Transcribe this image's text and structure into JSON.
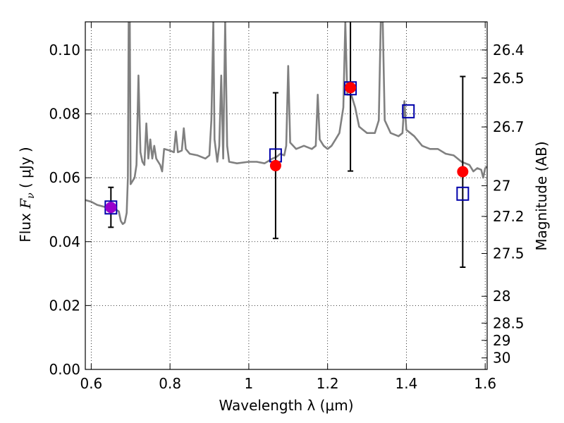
{
  "chart_data": {
    "type": "scatter",
    "xlabel": "Wavelength  λ (μm)",
    "ylabel": "Flux  F_ν  ( μJy )",
    "ylabel_parts": {
      "prefix": "Flux  ",
      "symbol": "F",
      "subscript": "ν",
      "suffix": "  ( μJy )"
    },
    "y2label": "Magnitude (AB)",
    "xlim": [
      0.585,
      1.605
    ],
    "ylim": [
      0.0,
      0.1088
    ],
    "grid": true,
    "x_ticks": [
      0.6,
      0.8,
      1.0,
      1.2,
      1.4,
      1.6
    ],
    "x_tick_labels": [
      "0.6",
      "0.8",
      "1",
      "1.2",
      "1.4",
      "1.6"
    ],
    "y_ticks": [
      0.0,
      0.02,
      0.04,
      0.06,
      0.08,
      0.1
    ],
    "y_tick_labels": [
      "0.00",
      "0.02",
      "0.04",
      "0.06",
      "0.08",
      "0.10"
    ],
    "y2_ticks": [
      {
        "label": "26.4",
        "flux": 0.1
      },
      {
        "label": "26.5",
        "flux": 0.0912
      },
      {
        "label": "26.7",
        "flux": 0.0759
      },
      {
        "label": "27",
        "flux": 0.0575
      },
      {
        "label": "27.2",
        "flux": 0.0479
      },
      {
        "label": "27.5",
        "flux": 0.0363
      },
      {
        "label": "28",
        "flux": 0.0229
      },
      {
        "label": "28.5",
        "flux": 0.0145
      },
      {
        "label": "29",
        "flux": 0.0091
      },
      {
        "label": "30",
        "flux": 0.0036
      }
    ],
    "series": [
      {
        "kind": "line",
        "color": "#808080",
        "points": [
          [
            0.585,
            0.053
          ],
          [
            0.6,
            0.0525
          ],
          [
            0.615,
            0.0515
          ],
          [
            0.63,
            0.051
          ],
          [
            0.645,
            0.0505
          ],
          [
            0.66,
            0.0502
          ],
          [
            0.67,
            0.0495
          ],
          [
            0.675,
            0.0465
          ],
          [
            0.68,
            0.0455
          ],
          [
            0.685,
            0.046
          ],
          [
            0.69,
            0.049
          ],
          [
            0.693,
            0.06
          ],
          [
            0.695,
            0.1088
          ],
          [
            0.698,
            0.1088
          ],
          [
            0.7,
            0.058
          ],
          [
            0.705,
            0.059
          ],
          [
            0.71,
            0.06
          ],
          [
            0.715,
            0.064
          ],
          [
            0.72,
            0.092
          ],
          [
            0.725,
            0.068
          ],
          [
            0.73,
            0.065
          ],
          [
            0.735,
            0.064
          ],
          [
            0.74,
            0.077
          ],
          [
            0.745,
            0.066
          ],
          [
            0.75,
            0.072
          ],
          [
            0.755,
            0.066
          ],
          [
            0.76,
            0.07
          ],
          [
            0.765,
            0.066
          ],
          [
            0.77,
            0.065
          ],
          [
            0.775,
            0.064
          ],
          [
            0.78,
            0.062
          ],
          [
            0.785,
            0.069
          ],
          [
            0.8,
            0.0685
          ],
          [
            0.81,
            0.068
          ],
          [
            0.815,
            0.0745
          ],
          [
            0.82,
            0.068
          ],
          [
            0.83,
            0.0685
          ],
          [
            0.835,
            0.0755
          ],
          [
            0.84,
            0.069
          ],
          [
            0.85,
            0.0675
          ],
          [
            0.87,
            0.067
          ],
          [
            0.89,
            0.066
          ],
          [
            0.9,
            0.067
          ],
          [
            0.905,
            0.078
          ],
          [
            0.91,
            0.1088
          ],
          [
            0.913,
            0.072
          ],
          [
            0.92,
            0.065
          ],
          [
            0.925,
            0.07
          ],
          [
            0.93,
            0.092
          ],
          [
            0.935,
            0.066
          ],
          [
            0.94,
            0.1088
          ],
          [
            0.945,
            0.07
          ],
          [
            0.95,
            0.065
          ],
          [
            0.97,
            0.0645
          ],
          [
            1.0,
            0.065
          ],
          [
            1.02,
            0.065
          ],
          [
            1.04,
            0.0645
          ],
          [
            1.06,
            0.066
          ],
          [
            1.07,
            0.0665
          ],
          [
            1.08,
            0.0675
          ],
          [
            1.09,
            0.067
          ],
          [
            1.095,
            0.07
          ],
          [
            1.1,
            0.095
          ],
          [
            1.105,
            0.071
          ],
          [
            1.12,
            0.069
          ],
          [
            1.14,
            0.07
          ],
          [
            1.16,
            0.069
          ],
          [
            1.17,
            0.07
          ],
          [
            1.175,
            0.086
          ],
          [
            1.18,
            0.072
          ],
          [
            1.19,
            0.07
          ],
          [
            1.2,
            0.069
          ],
          [
            1.21,
            0.07
          ],
          [
            1.22,
            0.072
          ],
          [
            1.23,
            0.074
          ],
          [
            1.24,
            0.082
          ],
          [
            1.245,
            0.1088
          ],
          [
            1.25,
            0.086
          ],
          [
            1.26,
            0.086
          ],
          [
            1.27,
            0.082
          ],
          [
            1.28,
            0.076
          ],
          [
            1.29,
            0.075
          ],
          [
            1.3,
            0.074
          ],
          [
            1.32,
            0.074
          ],
          [
            1.33,
            0.078
          ],
          [
            1.335,
            0.1088
          ],
          [
            1.34,
            0.1088
          ],
          [
            1.345,
            0.078
          ],
          [
            1.36,
            0.074
          ],
          [
            1.38,
            0.073
          ],
          [
            1.39,
            0.074
          ],
          [
            1.395,
            0.084
          ],
          [
            1.4,
            0.075
          ],
          [
            1.41,
            0.074
          ],
          [
            1.42,
            0.073
          ],
          [
            1.44,
            0.07
          ],
          [
            1.46,
            0.069
          ],
          [
            1.48,
            0.069
          ],
          [
            1.5,
            0.0675
          ],
          [
            1.52,
            0.067
          ],
          [
            1.54,
            0.065
          ],
          [
            1.56,
            0.064
          ],
          [
            1.57,
            0.062
          ],
          [
            1.58,
            0.063
          ],
          [
            1.59,
            0.0625
          ],
          [
            1.595,
            0.06
          ],
          [
            1.6,
            0.063
          ],
          [
            1.605,
            0.0635
          ]
        ]
      },
      {
        "kind": "points-with-errors",
        "color": "#ff0000",
        "points": [
          {
            "x": 0.65,
            "y": 0.0507,
            "ylo": 0.0445,
            "yhi": 0.057,
            "color": "#9900cc"
          },
          {
            "x": 1.068,
            "y": 0.0638,
            "ylo": 0.041,
            "yhi": 0.0866
          },
          {
            "x": 1.258,
            "y": 0.0882,
            "ylo": 0.0621,
            "yhi": 0.1088
          },
          {
            "x": 1.543,
            "y": 0.0619,
            "ylo": 0.032,
            "yhi": 0.0917
          }
        ]
      },
      {
        "kind": "open-squares",
        "color": "#0000aa",
        "points": [
          {
            "x": 0.65,
            "y": 0.0507
          },
          {
            "x": 1.068,
            "y": 0.067
          },
          {
            "x": 1.258,
            "y": 0.088
          },
          {
            "x": 1.405,
            "y": 0.0808
          },
          {
            "x": 1.543,
            "y": 0.055
          }
        ]
      }
    ],
    "colors": {
      "line": "#808080",
      "point": "#ff0000",
      "square": "#0000aa",
      "error": "#000000"
    }
  }
}
